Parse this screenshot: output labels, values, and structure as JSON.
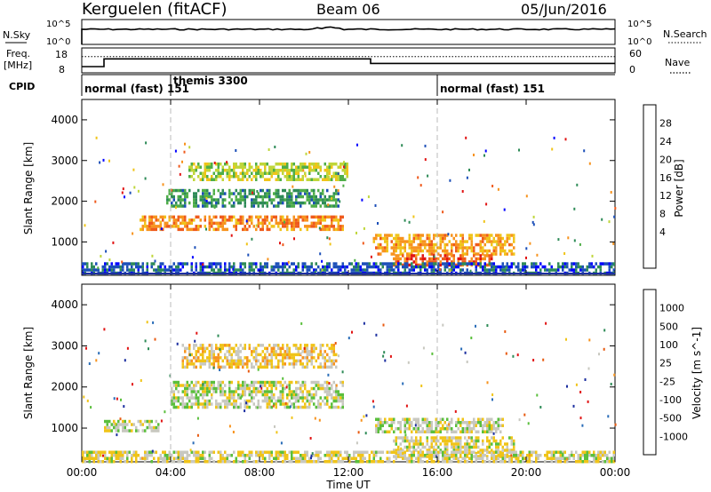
{
  "header": {
    "radar": "Kerguelen (fitACF)",
    "beam": "Beam 06",
    "date": "05/Jun/2016"
  },
  "nsky_panel": {
    "left_label": "N.Sky",
    "left_tick_top": "10^5",
    "left_tick_bottom": "10^0",
    "right_label": "N.Search",
    "right_tick_top": "10^5",
    "right_tick_bottom": "10^0"
  },
  "freq_panel": {
    "left_label_1": "Freq.",
    "left_label_2": "[MHz]",
    "left_tick_top": "18",
    "left_tick_bottom": "8",
    "right_label": "Nave",
    "right_tick_top": "60",
    "right_tick_bottom": "0",
    "freq_steps": [
      {
        "t0": 0.0,
        "t1": 1.0,
        "mhz": 10.5
      },
      {
        "t0": 1.0,
        "t1": 13.0,
        "mhz": 13.6
      },
      {
        "t0": 13.0,
        "t1": 24.0,
        "mhz": 11.8
      }
    ],
    "nave_level": 0.65
  },
  "cpid_panel": {
    "label": "CPID",
    "modes": [
      {
        "start_hour": 0,
        "text": "normal (fast) 151"
      },
      {
        "start_hour": 4,
        "text": "themis 3300"
      },
      {
        "start_hour": 16,
        "text": "normal (fast) 151"
      }
    ]
  },
  "chart_data": [
    {
      "type": "heatmap",
      "name_text": "Power",
      "ylabel": "Slant Range [km]",
      "colorbar_label": "Power [dB]",
      "colorbar_ticks": [
        "28",
        "24",
        "20",
        "16",
        "12",
        "8",
        "4"
      ],
      "colorbar_colors": [
        "#0000ff",
        "#1c4fb8",
        "#2e8b57",
        "#4fae48",
        "#bfd63a",
        "#f0c419",
        "#f7931e",
        "#ef5a1c",
        "#e11414"
      ],
      "x_ticks": [
        "00:00",
        "04:00",
        "08:00",
        "12:00",
        "16:00",
        "20:00",
        "00:00"
      ],
      "xlim_hours": [
        0,
        24
      ],
      "ylim_km": [
        180,
        4500
      ],
      "y_ticks": [
        "1000",
        "2000",
        "3000",
        "4000"
      ],
      "echo_regions": [
        {
          "t0": 2.6,
          "t1": 11.8,
          "r0": 1300,
          "r1": 1650,
          "value": 24
        },
        {
          "t0": 3.8,
          "t1": 11.6,
          "r0": 1900,
          "r1": 2300,
          "value": 10
        },
        {
          "t0": 4.8,
          "t1": 12.0,
          "r0": 2500,
          "r1": 2950,
          "value": 16
        },
        {
          "t0": 13.1,
          "t1": 19.5,
          "r0": 700,
          "r1": 1200,
          "value": 22
        },
        {
          "t0": 14.0,
          "t1": 18.5,
          "r0": 400,
          "r1": 700,
          "value": 26
        },
        {
          "t0": 0.0,
          "t1": 24.0,
          "r0": 200,
          "r1": 500,
          "value": 6
        }
      ]
    },
    {
      "type": "heatmap",
      "name_text": "Velocity",
      "ylabel": "Slant Range [km]",
      "colorbar_label": "Velocity [m s^-1]",
      "colorbar_ticks": [
        "1000",
        "500",
        "100",
        "25",
        "-25",
        "-100",
        "-500",
        "-1000"
      ],
      "colorbar_colors": [
        "#1c2fa0",
        "#2a6db8",
        "#2e8b57",
        "#5abf3c",
        "#c8c8c0",
        "#f0c419",
        "#f7931e",
        "#e85a10",
        "#e11414"
      ],
      "x_ticks": [
        "00:00",
        "04:00",
        "08:00",
        "12:00",
        "16:00",
        "20:00",
        "00:00"
      ],
      "xlabel": "Time UT",
      "xlim_hours": [
        0,
        24
      ],
      "ylim_km": [
        180,
        4500
      ],
      "y_ticks": [
        "1000",
        "2000",
        "3000",
        "4000"
      ],
      "echo_regions": [
        {
          "t0": 4.5,
          "t1": 11.5,
          "r0": 2500,
          "r1": 3050,
          "value": -200
        },
        {
          "t0": 4.0,
          "t1": 11.8,
          "r0": 1500,
          "r1": 2150,
          "value": 0
        },
        {
          "t0": 1.0,
          "t1": 3.5,
          "r0": 900,
          "r1": 1200,
          "value": 60
        },
        {
          "t0": 13.2,
          "t1": 19.0,
          "r0": 900,
          "r1": 1250,
          "value": 0
        },
        {
          "t0": 14.0,
          "t1": 19.5,
          "r0": 300,
          "r1": 800,
          "value": -80
        },
        {
          "t0": 0.0,
          "t1": 24.0,
          "r0": 200,
          "r1": 450,
          "value": -60
        }
      ]
    }
  ]
}
